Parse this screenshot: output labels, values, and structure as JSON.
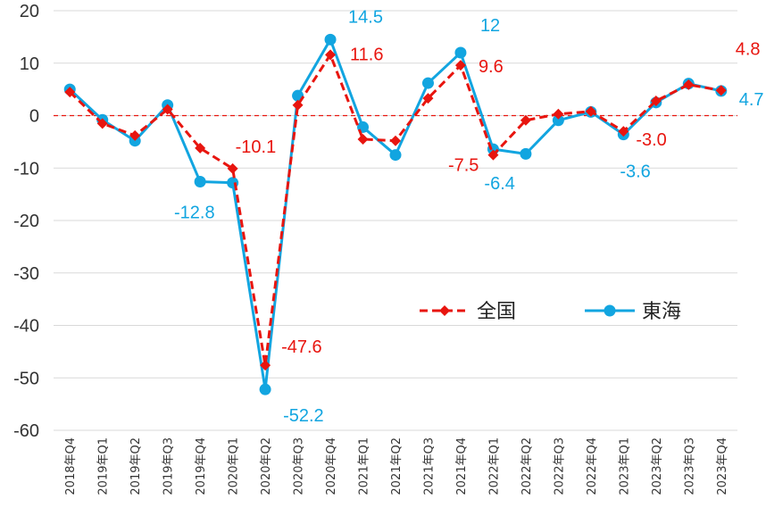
{
  "chart_data": {
    "type": "line",
    "categories": [
      "2018年Q4",
      "2019年Q1",
      "2019年Q2",
      "2019年Q3",
      "2019年Q4",
      "2020年Q1",
      "2020年Q2",
      "2020年Q3",
      "2020年Q4",
      "2021年Q1",
      "2021年Q2",
      "2021年Q3",
      "2021年Q4",
      "2022年Q1",
      "2022年Q2",
      "2022年Q3",
      "2022年Q4",
      "2023年Q1",
      "2023年Q2",
      "2023年Q3",
      "2023年Q4"
    ],
    "ylim": [
      -60,
      20
    ],
    "yticks": [
      20,
      10,
      0,
      -10,
      -20,
      -30,
      -40,
      -50,
      -60
    ],
    "grid": true,
    "legend_position": "center-right",
    "series": [
      {
        "name": "全国",
        "color": "#e8150f",
        "style": "dashed",
        "marker": "diamond",
        "values": [
          4.5,
          -1.5,
          -3.8,
          1.2,
          -6.2,
          -10.1,
          -47.6,
          2.0,
          11.6,
          -4.5,
          -4.8,
          3.3,
          9.6,
          -7.5,
          -0.9,
          0.3,
          0.8,
          -3.0,
          2.8,
          5.9,
          4.8
        ]
      },
      {
        "name": "東海",
        "color": "#12a5e0",
        "style": "solid",
        "marker": "circle",
        "values": [
          5.0,
          -0.8,
          -4.8,
          2.0,
          -12.6,
          -12.8,
          -52.2,
          3.8,
          14.5,
          -2.2,
          -7.5,
          6.2,
          12.0,
          -6.4,
          -7.3,
          -0.9,
          0.7,
          -3.6,
          2.5,
          6.1,
          4.7
        ]
      }
    ],
    "annotations": [
      {
        "series": "全国",
        "index": 5,
        "text": "-10.1"
      },
      {
        "series": "全国",
        "index": 6,
        "text": "-47.6"
      },
      {
        "series": "全国",
        "index": 8,
        "text": "11.6"
      },
      {
        "series": "全国",
        "index": 12,
        "text": "9.6"
      },
      {
        "series": "全国",
        "index": 13,
        "text": "-7.5"
      },
      {
        "series": "全国",
        "index": 17,
        "text": "-3.0"
      },
      {
        "series": "全国",
        "index": 20,
        "text": "4.8"
      },
      {
        "series": "東海",
        "index": 5,
        "text": "-12.8"
      },
      {
        "series": "東海",
        "index": 6,
        "text": "-52.2"
      },
      {
        "series": "東海",
        "index": 8,
        "text": "14.5"
      },
      {
        "series": "東海",
        "index": 12,
        "text": "12"
      },
      {
        "series": "東海",
        "index": 13,
        "text": "-6.4"
      },
      {
        "series": "東海",
        "index": 17,
        "text": "-3.6"
      },
      {
        "series": "東海",
        "index": 20,
        "text": "4.7"
      }
    ]
  }
}
